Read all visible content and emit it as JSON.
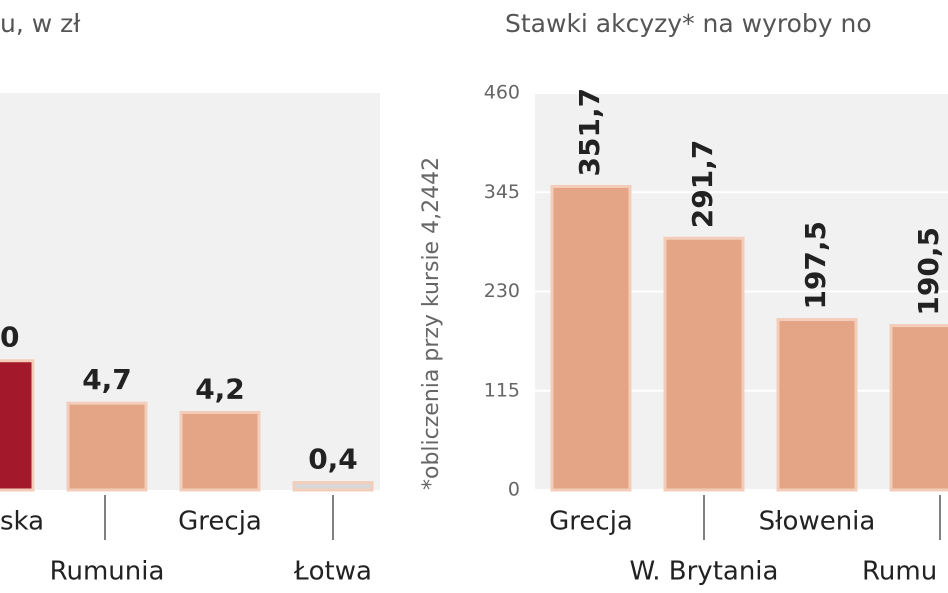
{
  "chart_data": [
    {
      "type": "bar",
      "title": "u, w zł",
      "categories": [
        "ska",
        "Rumunia",
        "Grecja",
        "Łotwa"
      ],
      "values": [
        7.0,
        4.7,
        4.2,
        0.4
      ],
      "value_labels": [
        null,
        "4,7",
        "4,2",
        "0,4"
      ],
      "annotations": [
        "0"
      ],
      "colors": [
        "#a3192b",
        "#e3a586",
        "#e3a586",
        "#d8d8d8"
      ],
      "ylim": [
        0,
        21.5
      ]
    },
    {
      "type": "bar",
      "title": "Stawki akcyzy* na wyroby no",
      "note": "*obliczenia przy kursie 4,2442",
      "categories": [
        "Grecja",
        "W. Brytania",
        "Słowenia",
        "Rumu"
      ],
      "values": [
        351.7,
        291.7,
        197.5,
        190.5
      ],
      "value_labels": [
        "351,7",
        "291,7",
        "197,5",
        "190,5"
      ],
      "colors": [
        "#e3a586",
        "#e3a586",
        "#e3a586",
        "#e3a586"
      ],
      "ylim": [
        0,
        460
      ],
      "yticks": [
        0,
        115,
        230,
        345,
        460
      ],
      "grid": true
    }
  ]
}
